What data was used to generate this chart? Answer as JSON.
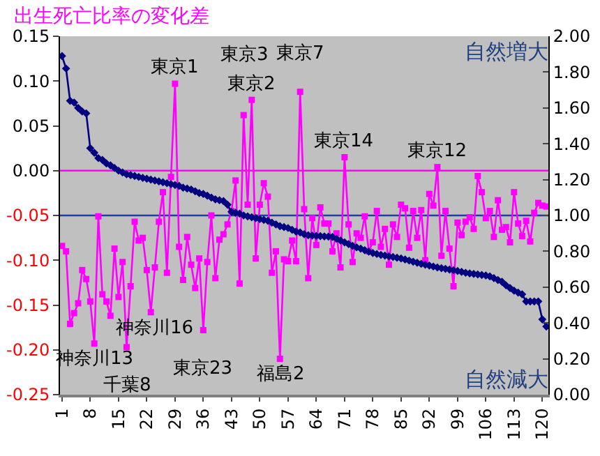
{
  "chart_data": {
    "type": "line",
    "ylabel": "出生死亡比率の変化差",
    "x": [
      1,
      2,
      3,
      4,
      5,
      6,
      7,
      8,
      9,
      10,
      11,
      12,
      13,
      14,
      15,
      16,
      17,
      18,
      19,
      20,
      21,
      22,
      23,
      24,
      25,
      26,
      27,
      28,
      29,
      30,
      31,
      32,
      33,
      34,
      35,
      36,
      37,
      38,
      39,
      40,
      41,
      42,
      43,
      44,
      45,
      46,
      47,
      48,
      49,
      50,
      51,
      52,
      53,
      54,
      55,
      56,
      57,
      58,
      59,
      60,
      61,
      62,
      63,
      64,
      65,
      66,
      67,
      68,
      69,
      70,
      71,
      72,
      73,
      74,
      75,
      76,
      77,
      78,
      79,
      80,
      81,
      82,
      83,
      84,
      85,
      86,
      87,
      88,
      89,
      90,
      91,
      92,
      93,
      94,
      95,
      96,
      97,
      98,
      99,
      100,
      101,
      102,
      103,
      104,
      105,
      106,
      107,
      108,
      109,
      110,
      111,
      112,
      113,
      114,
      115,
      116,
      117,
      118,
      119,
      120,
      121
    ],
    "series": [
      {
        "color": "#ff00ff",
        "marker": "square",
        "axis": "y",
        "values": [
          -0.084,
          -0.09,
          -0.171,
          -0.159,
          -0.148,
          -0.111,
          -0.121,
          -0.146,
          -0.193,
          -0.051,
          -0.138,
          -0.146,
          -0.162,
          -0.087,
          -0.141,
          -0.102,
          -0.197,
          -0.129,
          -0.057,
          -0.078,
          -0.075,
          -0.111,
          -0.158,
          -0.108,
          -0.057,
          -0.024,
          -0.114,
          -0.007,
          0.097,
          -0.085,
          -0.122,
          -0.074,
          -0.105,
          -0.131,
          -0.098,
          -0.178,
          -0.102,
          -0.05,
          -0.12,
          -0.077,
          -0.071,
          -0.06,
          -0.045,
          -0.011,
          -0.126,
          0.062,
          -0.038,
          0.079,
          -0.098,
          -0.038,
          -0.014,
          -0.029,
          -0.114,
          -0.09,
          -0.21,
          -0.099,
          -0.101,
          -0.078,
          -0.101,
          0.088,
          -0.043,
          -0.12,
          -0.053,
          -0.083,
          -0.041,
          -0.059,
          -0.059,
          -0.09,
          -0.07,
          -0.108,
          0.015,
          -0.06,
          -0.102,
          -0.07,
          -0.075,
          -0.051,
          -0.09,
          -0.08,
          -0.045,
          -0.085,
          -0.065,
          -0.105,
          -0.06,
          -0.074,
          -0.038,
          -0.042,
          -0.086,
          -0.045,
          -0.075,
          -0.044,
          -0.1,
          -0.026,
          -0.039,
          0.004,
          -0.095,
          -0.045,
          -0.087,
          -0.129,
          -0.058,
          -0.072,
          -0.057,
          -0.052,
          -0.065,
          -0.006,
          -0.024,
          -0.053,
          -0.045,
          -0.074,
          -0.033,
          -0.066,
          -0.063,
          -0.08,
          -0.024,
          -0.059,
          -0.073,
          -0.056,
          -0.079,
          -0.047,
          -0.036,
          -0.039,
          -0.04
        ]
      },
      {
        "color": "#000080",
        "marker": "diamond",
        "axis": "y2",
        "values": [
          1.89,
          1.82,
          1.64,
          1.63,
          1.6,
          1.58,
          1.57,
          1.375,
          1.35,
          1.32,
          1.31,
          1.29,
          1.28,
          1.265,
          1.25,
          1.24,
          1.23,
          1.225,
          1.22,
          1.215,
          1.21,
          1.205,
          1.2,
          1.195,
          1.19,
          1.185,
          1.18,
          1.175,
          1.17,
          1.165,
          1.155,
          1.15,
          1.145,
          1.135,
          1.125,
          1.12,
          1.11,
          1.1,
          1.09,
          1.085,
          1.08,
          1.06,
          1.02,
          1.015,
          1.01,
          1.0,
          0.995,
          0.99,
          0.985,
          0.98,
          0.975,
          0.97,
          0.96,
          0.95,
          0.94,
          0.935,
          0.93,
          0.92,
          0.91,
          0.905,
          0.895,
          0.89,
          0.888,
          0.886,
          0.885,
          0.883,
          0.882,
          0.88,
          0.87,
          0.86,
          0.85,
          0.84,
          0.83,
          0.822,
          0.815,
          0.806,
          0.798,
          0.79,
          0.785,
          0.78,
          0.776,
          0.772,
          0.768,
          0.764,
          0.76,
          0.754,
          0.748,
          0.742,
          0.736,
          0.73,
          0.725,
          0.72,
          0.715,
          0.71,
          0.706,
          0.702,
          0.698,
          0.694,
          0.69,
          0.685,
          0.68,
          0.677,
          0.674,
          0.671,
          0.668,
          0.665,
          0.66,
          0.65,
          0.64,
          0.63,
          0.61,
          0.595,
          0.58,
          0.57,
          0.56,
          0.52,
          0.52,
          0.52,
          0.52,
          0.42,
          0.38
        ]
      }
    ],
    "xlim": [
      0.5,
      121.5
    ],
    "xticks": [
      1,
      8,
      15,
      22,
      29,
      36,
      43,
      50,
      57,
      64,
      71,
      78,
      85,
      92,
      99,
      106,
      113,
      120
    ],
    "ylim": [
      -0.25,
      0.15
    ],
    "yticks": [
      {
        "value": 0.15,
        "label": "0.15"
      },
      {
        "value": 0.1,
        "label": "0.10"
      },
      {
        "value": 0.05,
        "label": "0.05"
      },
      {
        "value": 0,
        "label": "0.00"
      },
      {
        "value": -0.05,
        "label": "-0.05"
      },
      {
        "value": -0.1,
        "label": "-0.10"
      },
      {
        "value": -0.15,
        "label": "-0.15"
      },
      {
        "value": -0.2,
        "label": "-0.20"
      },
      {
        "value": -0.25,
        "label": "-0.25"
      }
    ],
    "y2lim": [
      0,
      2
    ],
    "y2ticks": [
      {
        "value": 0,
        "label": "0.00"
      },
      {
        "value": 0.2,
        "label": "0.20"
      },
      {
        "value": 0.4,
        "label": "0.40"
      },
      {
        "value": 0.6,
        "label": "0.60"
      },
      {
        "value": 0.8,
        "label": "0.80"
      },
      {
        "value": 1,
        "label": "1.00"
      },
      {
        "value": 1.2,
        "label": "1.20"
      },
      {
        "value": 1.4,
        "label": "1.40"
      },
      {
        "value": 1.6,
        "label": "1.60"
      },
      {
        "value": 1.8,
        "label": "1.80"
      },
      {
        "value": 2,
        "label": "2.00"
      }
    ],
    "ref_lines": [
      {
        "axis": "y",
        "value": 0,
        "color": "#ff00ff"
      },
      {
        "axis": "y2",
        "value": 1,
        "color": "#1f3f9f"
      }
    ],
    "grid": false,
    "annotations": [
      "自然増大",
      "自然減大",
      {
        "text": "東京1",
        "x": 29,
        "y": 0.097
      },
      {
        "text": "東京2",
        "x": 48,
        "y": 0.079
      },
      {
        "text": "東京3",
        "x": 46,
        "y": 0.062
      },
      {
        "text": "東京7",
        "x": 60,
        "y": 0.088
      },
      {
        "text": "東京14",
        "x": 71,
        "y": 0.015
      },
      {
        "text": "東京12",
        "x": 94,
        "y": 0.004
      },
      {
        "text": "神奈川13",
        "x": 9,
        "y": -0.193
      },
      {
        "text": "千葉8",
        "x": 17,
        "y": -0.197
      },
      {
        "text": "神奈川16",
        "x": 24,
        "y": -0.158
      },
      {
        "text": "東京23",
        "x": 36,
        "y": -0.178
      },
      {
        "text": "福島2",
        "x": 55,
        "y": -0.21
      }
    ]
  }
}
